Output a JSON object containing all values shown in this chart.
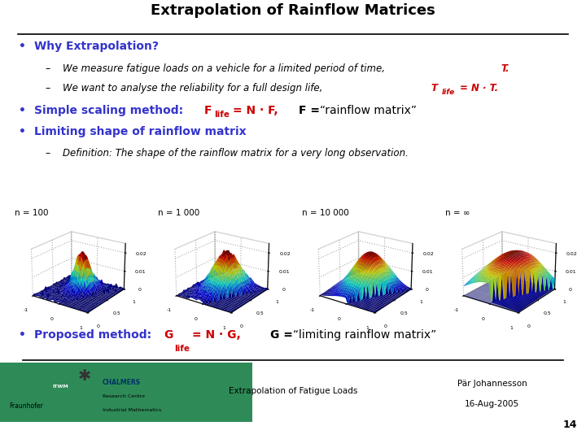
{
  "title": "Extrapolation of Rainflow Matrices",
  "bg_color": "#ffffff",
  "title_color": "#000000",
  "blue_color": "#3333cc",
  "red_color": "#cc0000",
  "black": "#000000",
  "footer_center": "Extrapolation of Fatigue Loads",
  "footer_right_line1": "Pär Johannesson",
  "footer_right_line2": "16-Aug-2005",
  "footer_page": "14",
  "plot_labels": [
    "n = 100",
    "n = 1 000",
    "n = 10 000",
    "n = ∞"
  ]
}
